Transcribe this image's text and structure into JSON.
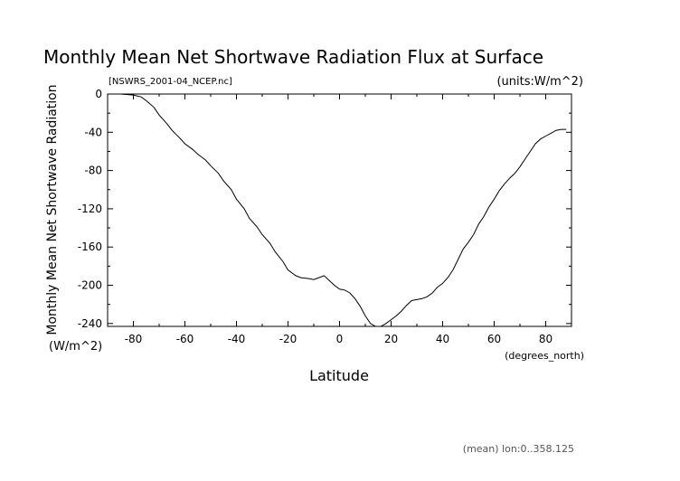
{
  "chart_data": {
    "type": "line",
    "title": "Monthly Mean Net Shortwave Radiation Flux at Surface",
    "file_label": "[NSWRS_2001-04_NCEP.nc]",
    "units_label": "(units:W/m^2)",
    "ylabel": "Monthly Mean Net Shortwave Radiation",
    "ylabel_units": "(W/m^2)",
    "xlabel": "Latitude",
    "xlabel_units": "(degrees_north)",
    "footnote": "(mean) lon:0..358.125",
    "xlim": [
      -90,
      90
    ],
    "ylim": [
      -243,
      0
    ],
    "x_ticks": [
      -80,
      -60,
      -40,
      -20,
      0,
      20,
      40,
      60,
      80
    ],
    "x_tick_labels": [
      "-80",
      "-60",
      "-40",
      "-20",
      "0",
      "20",
      "40",
      "60",
      "80"
    ],
    "y_ticks": [
      0,
      -40,
      -80,
      -120,
      -160,
      -200,
      -240
    ],
    "y_tick_labels": [
      "0",
      "-40",
      "-80",
      "-120",
      "-160",
      "-200",
      "-240"
    ],
    "grid": false,
    "series": [
      {
        "x": [
          -89,
          -85,
          -80,
          -77,
          -75,
          -72,
          -70,
          -67,
          -65,
          -62,
          -60,
          -57,
          -55,
          -52,
          -50,
          -47,
          -45,
          -42,
          -40,
          -37,
          -35,
          -32,
          -30,
          -27,
          -25,
          -22,
          -20,
          -17,
          -15,
          -12,
          -10,
          -8,
          -6,
          -4,
          -2,
          0,
          2,
          4,
          6,
          8,
          10,
          12,
          14,
          16,
          18,
          20,
          22,
          24,
          26,
          28,
          30,
          32,
          34,
          36,
          38,
          40,
          42,
          44,
          46,
          48,
          50,
          52,
          54,
          56,
          58,
          60,
          62,
          64,
          66,
          68,
          70,
          72,
          74,
          76,
          78,
          80,
          82,
          84,
          86,
          88
        ],
        "y": [
          0,
          0,
          -1,
          -3,
          -7,
          -14,
          -22,
          -31,
          -38,
          -46,
          -52,
          -58,
          -63,
          -69,
          -75,
          -83,
          -91,
          -100,
          -110,
          -120,
          -130,
          -139,
          -147,
          -156,
          -165,
          -175,
          -184,
          -190,
          -192,
          -193,
          -194,
          -192,
          -190,
          -195,
          -200,
          -204,
          -205,
          -208,
          -214,
          -222,
          -232,
          -240,
          -243,
          -243,
          -240,
          -236,
          -232,
          -227,
          -221,
          -216,
          -215,
          -214,
          -212,
          -208,
          -202,
          -198,
          -192,
          -184,
          -173,
          -162,
          -155,
          -147,
          -136,
          -128,
          -118,
          -110,
          -101,
          -94,
          -88,
          -83,
          -76,
          -68,
          -60,
          -52,
          -47,
          -44,
          -41,
          -38,
          -37,
          -37
        ]
      }
    ]
  }
}
